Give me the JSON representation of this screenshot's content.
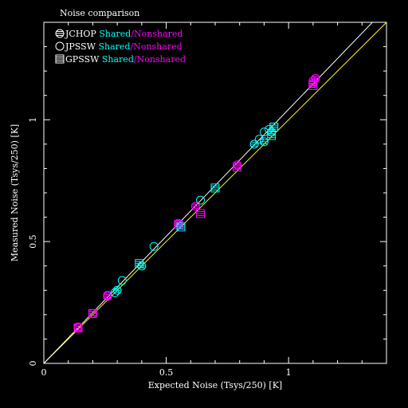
{
  "chart_data": {
    "type": "scatter",
    "title": "Noise comparison",
    "xlabel": "Expected Noise (Tsys/250) [K]",
    "ylabel": "Measured Noise (Tsys/250) [K]",
    "xlim": [
      0,
      1.4
    ],
    "ylim": [
      0,
      1.4
    ],
    "xticks": [
      {
        "v": 0,
        "label": "0"
      },
      {
        "v": 0.5,
        "label": "0.5"
      },
      {
        "v": 1,
        "label": "1"
      }
    ],
    "yticks": [
      {
        "v": 0,
        "label": "0"
      },
      {
        "v": 0.5,
        "label": "0.5"
      },
      {
        "v": 1,
        "label": "1"
      }
    ],
    "grid": false,
    "legend": {
      "position": "top-left",
      "entries": [
        {
          "name": "JCHOP",
          "marker": "circle-cross"
        },
        {
          "name": "JPSSW",
          "marker": "circle"
        },
        {
          "name": "GPSSW",
          "marker": "square-lines"
        }
      ],
      "shared_label": "Shared",
      "separator": "/",
      "nonshared_label": "Nonshared"
    },
    "colors": {
      "shared": "#00ffff",
      "nonshared": "#ff00ff",
      "reference_line": "#ffff00",
      "fit_line": "#ffffff",
      "axes": "#ffffff"
    },
    "lines": [
      {
        "kind": "reference",
        "x": [
          0,
          1.4
        ],
        "y": [
          0,
          1.4
        ]
      },
      {
        "kind": "fit",
        "x": [
          0,
          1.4
        ],
        "y": [
          0,
          1.46
        ]
      }
    ],
    "series": [
      {
        "name": "JCHOP Nonshared",
        "marker": "circle-cross",
        "color": "nonshared",
        "x": [
          0.14,
          0.2,
          0.26,
          0.55,
          0.62,
          0.79,
          1.1,
          1.11
        ],
        "y": [
          0.145,
          0.205,
          0.275,
          0.575,
          0.645,
          0.815,
          1.15,
          1.17
        ]
      },
      {
        "name": "JCHOP Shared",
        "marker": "circle-cross",
        "color": "shared",
        "x": [
          0.3,
          0.4,
          0.86,
          0.9,
          0.93
        ],
        "y": [
          0.3,
          0.4,
          0.9,
          0.91,
          0.95
        ]
      },
      {
        "name": "JPSSW Nonshared",
        "marker": "circle",
        "color": "nonshared",
        "x": [
          0.14,
          0.26,
          1.1
        ],
        "y": [
          0.15,
          0.28,
          1.16
        ]
      },
      {
        "name": "JPSSW Shared",
        "marker": "circle",
        "color": "shared",
        "x": [
          0.29,
          0.32,
          0.45,
          0.64,
          0.88,
          0.9,
          0.92
        ],
        "y": [
          0.29,
          0.34,
          0.48,
          0.67,
          0.92,
          0.95,
          0.96
        ]
      },
      {
        "name": "GPSSW Nonshared",
        "marker": "square-lines",
        "color": "nonshared",
        "x": [
          0.14,
          0.2,
          0.55,
          0.64,
          0.79,
          1.1
        ],
        "y": [
          0.145,
          0.205,
          0.57,
          0.615,
          0.805,
          1.14
        ]
      },
      {
        "name": "GPSSW Shared",
        "marker": "square-lines",
        "color": "shared",
        "x": [
          0.39,
          0.56,
          0.7,
          0.93,
          0.94
        ],
        "y": [
          0.41,
          0.56,
          0.72,
          0.935,
          0.97
        ]
      }
    ]
  }
}
